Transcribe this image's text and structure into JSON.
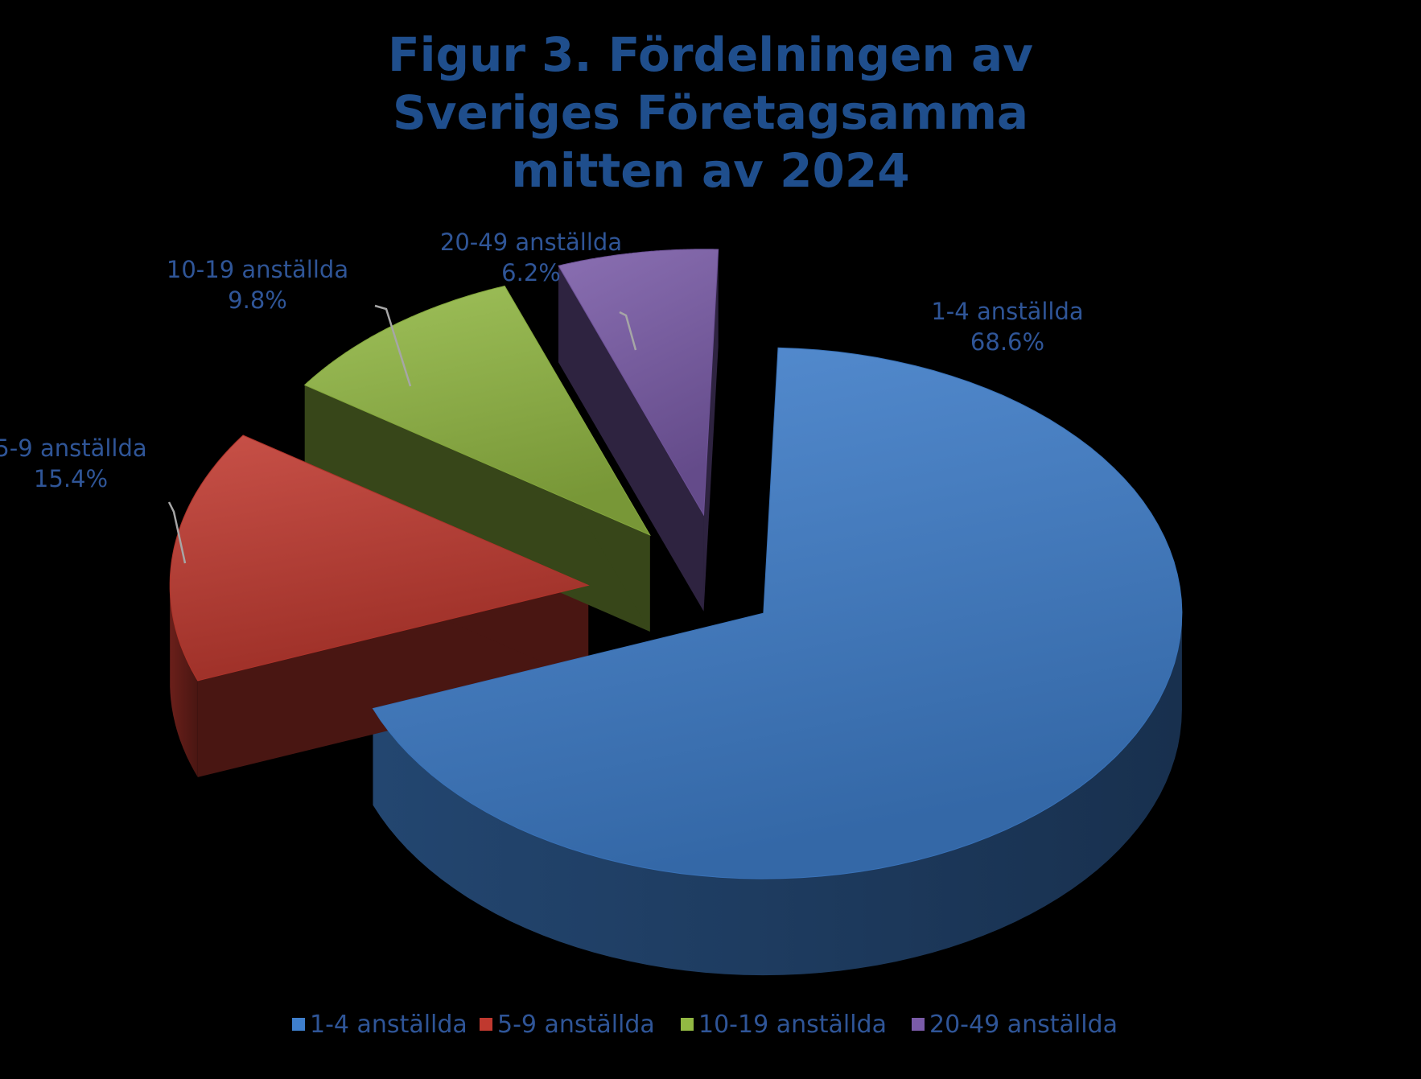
{
  "chart_data": {
    "type": "pie",
    "title_lines": [
      "Figur 3. Fördelningen av",
      "Sveriges Företagsamma",
      "mitten av 2024"
    ],
    "categories": [
      "1-4 anställda",
      "5-9 anställda",
      "10-19 anställda",
      "20-49 anställda"
    ],
    "values": [
      68.6,
      15.4,
      9.8,
      6.2
    ],
    "value_labels": [
      "68.6%",
      "15.4%",
      "9.8%",
      "6.2%"
    ],
    "colors": [
      "#3F7FCC",
      "#C0392F",
      "#92B843",
      "#7A5BA8"
    ],
    "style": "3d-exploded",
    "legend_position": "bottom",
    "title_color": "#1F4E8C",
    "label_color": "#2F5597",
    "background": "#000000"
  }
}
